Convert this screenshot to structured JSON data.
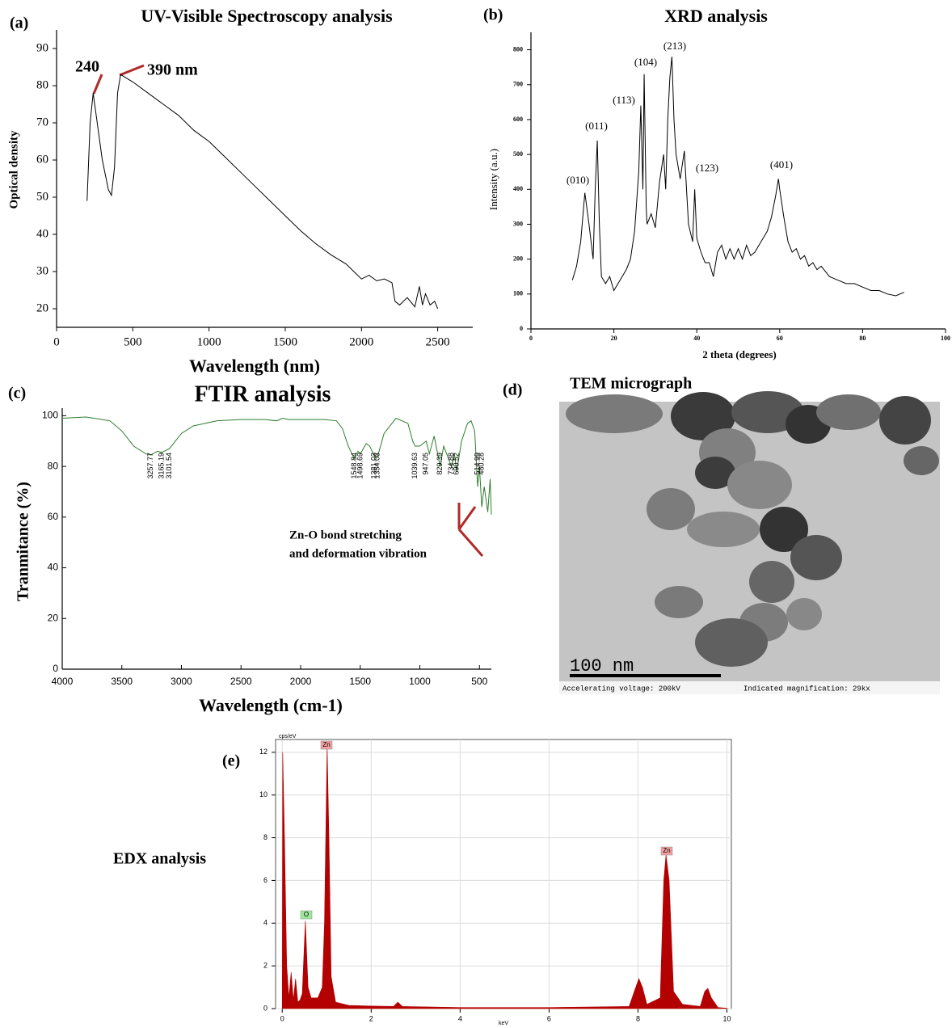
{
  "chart_data": [
    {
      "type": "line",
      "label": "(a)",
      "title": "UV-Visible Spectroscopy analysis",
      "xlabel": "Wavelength (nm)",
      "ylabel": "Optical density",
      "x": [
        200,
        220,
        240,
        260,
        300,
        340,
        360,
        380,
        400,
        420,
        500,
        600,
        700,
        800,
        900,
        1000,
        1100,
        1200,
        1300,
        1400,
        1500,
        1600,
        1700,
        1800,
        1900,
        1950,
        2000,
        2050,
        2100,
        2150,
        2200,
        2220,
        2250,
        2300,
        2350,
        2380,
        2400,
        2420,
        2450,
        2480,
        2500
      ],
      "values": [
        49,
        70,
        78,
        72,
        60,
        52,
        50.5,
        58,
        78,
        83,
        81,
        78,
        75,
        72,
        68,
        65,
        61,
        57,
        53,
        49,
        45,
        41,
        37.5,
        34.5,
        32,
        30,
        28,
        29,
        27.5,
        28,
        27,
        22,
        21,
        23,
        20.5,
        26,
        21,
        24,
        21,
        22,
        20
      ],
      "color": "#000000",
      "xlim": [
        0,
        2730
      ],
      "ylim": [
        15,
        95
      ],
      "xticks": [
        0,
        500,
        1000,
        1500,
        2000,
        2500
      ],
      "yticks": [
        20,
        30,
        40,
        50,
        60,
        70,
        80,
        90
      ],
      "annotations": [
        "240",
        "390 nm"
      ]
    },
    {
      "type": "line",
      "label": "(b)",
      "title": "XRD analysis",
      "xlabel": "2 theta (degrees)",
      "ylabel": "Intensity (a.u.)",
      "x": [
        10,
        11,
        12,
        13,
        14,
        15,
        15.5,
        16,
        16.5,
        17,
        18,
        19,
        20,
        21,
        22,
        23,
        24,
        25,
        26,
        26.5,
        27,
        27.3,
        27.8,
        28,
        29,
        30,
        31,
        32,
        32.5,
        33,
        33.5,
        34,
        34.5,
        35,
        36,
        37,
        38,
        39,
        39.5,
        40,
        41,
        42,
        43,
        44,
        45,
        46,
        47,
        48,
        49,
        50,
        51,
        52,
        53,
        54,
        55,
        56,
        57,
        58,
        59,
        59.7,
        60,
        61,
        62,
        63,
        64,
        65,
        66,
        67,
        68,
        69,
        70,
        72,
        74,
        76,
        78,
        80,
        82,
        84,
        86,
        88,
        90
      ],
      "values": [
        140,
        180,
        250,
        390,
        300,
        200,
        400,
        540,
        300,
        150,
        130,
        150,
        110,
        130,
        150,
        170,
        200,
        280,
        450,
        640,
        400,
        730,
        350,
        300,
        330,
        290,
        420,
        500,
        400,
        600,
        720,
        780,
        600,
        500,
        430,
        510,
        300,
        250,
        400,
        260,
        220,
        190,
        190,
        150,
        220,
        240,
        200,
        230,
        200,
        230,
        200,
        240,
        210,
        220,
        240,
        260,
        280,
        320,
        380,
        430,
        400,
        320,
        250,
        220,
        230,
        200,
        210,
        180,
        190,
        170,
        180,
        150,
        140,
        130,
        130,
        120,
        110,
        110,
        100,
        95,
        105
      ],
      "color": "#000000",
      "xlim": [
        0,
        100
      ],
      "ylim": [
        0,
        850
      ],
      "xticks": [
        0,
        20,
        40,
        60,
        80,
        100
      ],
      "yticks": [
        0,
        100,
        200,
        300,
        400,
        500,
        600,
        700,
        800
      ],
      "annotations": [
        "(010)",
        "(011)",
        "(113)",
        "(104)",
        "(213)",
        "(123)",
        "(401)"
      ]
    },
    {
      "type": "line",
      "label": "(c)",
      "title": "FTIR analysis",
      "xlabel": "Wavelength (cm-1)",
      "ylabel": "Tranmitance (%)",
      "x": [
        4000,
        3800,
        3600,
        3500,
        3400,
        3300,
        3257.77,
        3200,
        3165.19,
        3101.54,
        3000,
        2900,
        2700,
        2500,
        2300,
        2200,
        2150,
        2100,
        2000,
        1800,
        1700,
        1650,
        1600,
        1548.84,
        1520,
        1498.69,
        1450,
        1420,
        1381.03,
        1354.03,
        1300,
        1200,
        1100,
        1060,
        1039.63,
        1000,
        947.05,
        920,
        880,
        829.39,
        800,
        734.88,
        710,
        690.52,
        650,
        600,
        570,
        540,
        514.99,
        500,
        480.28,
        460,
        430,
        410,
        400
      ],
      "values": [
        99,
        99.5,
        98,
        94,
        88,
        85,
        84.5,
        86,
        85.5,
        87,
        93,
        96,
        98,
        98.5,
        98.5,
        98,
        99,
        98.5,
        98.5,
        98.5,
        98,
        95,
        88,
        83,
        86,
        85,
        89,
        88,
        84,
        84,
        93,
        99,
        97,
        90,
        88,
        88,
        90,
        85,
        92,
        80,
        88,
        80,
        85,
        78,
        90,
        97,
        98,
        94,
        72,
        80,
        64,
        72,
        62,
        75,
        61
      ],
      "color": "#2e7d2e",
      "xlim": [
        4000,
        400
      ],
      "ylim": [
        0,
        103
      ],
      "xticks": [
        4000,
        3500,
        3000,
        2500,
        2000,
        1500,
        1000,
        500
      ],
      "yticks": [
        0,
        20,
        40,
        60,
        80,
        100
      ],
      "peaks": [
        3257.77,
        3165.19,
        3101.54,
        1548.84,
        1498.69,
        1381.03,
        1354.03,
        1039.63,
        947.05,
        829.39,
        734.88,
        690.52,
        514.99,
        480.28
      ],
      "annotations": [
        "Zn-O bond stretching",
        "and deformation vibration"
      ]
    },
    {
      "type": "area",
      "label": "(e)",
      "title": "EDX analysis",
      "xlabel": "keV",
      "ylabel": "cps/eV",
      "x": [
        0,
        0.01,
        0.05,
        0.1,
        0.15,
        0.2,
        0.25,
        0.3,
        0.35,
        0.4,
        0.45,
        0.52,
        0.58,
        0.65,
        0.8,
        0.9,
        0.95,
        1.0,
        1.01,
        1.05,
        1.1,
        1.2,
        1.5,
        2,
        2.5,
        2.6,
        2.7,
        4,
        6,
        7.8,
        7.95,
        8.02,
        8.1,
        8.2,
        8.5,
        8.58,
        8.63,
        8.7,
        8.8,
        9,
        9.4,
        9.5,
        9.57,
        9.65,
        9.8,
        10
      ],
      "values": [
        0,
        12,
        8,
        2,
        0.5,
        1.7,
        0.4,
        1.4,
        0.3,
        0.4,
        0.7,
        4.1,
        1,
        0.5,
        0.5,
        1,
        4,
        11,
        12.3,
        8,
        1.5,
        0.3,
        0.15,
        0.12,
        0.1,
        0.3,
        0.1,
        0.05,
        0.05,
        0.1,
        1,
        1.4,
        1,
        0.2,
        0.5,
        6,
        7.2,
        6,
        0.8,
        0.2,
        0.1,
        0.8,
        0.95,
        0.5,
        0.05,
        0.02
      ],
      "color": "#b30000",
      "xlim": [
        -0.15,
        10.1
      ],
      "ylim": [
        0,
        12.6
      ],
      "grid": true,
      "xticks": [
        0,
        2,
        4,
        6,
        8,
        10
      ],
      "yticks": [
        0,
        2,
        4,
        6,
        8,
        10,
        12
      ],
      "annotations": [
        "Zn",
        "Zn",
        "O"
      ]
    }
  ],
  "tem": {
    "label": "(d)",
    "title": "TEM micrograph",
    "scale_bar": "100 nm",
    "voltage": "Accelerating voltage: 200kV",
    "magnification": "Indicated magnification: 29kx"
  }
}
